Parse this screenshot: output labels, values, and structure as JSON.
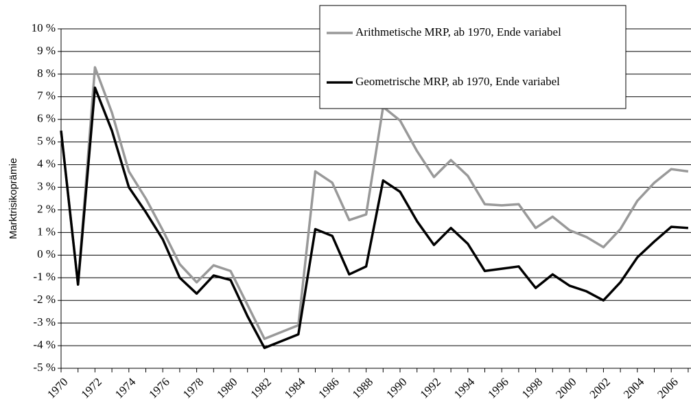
{
  "chart_data": {
    "type": "line",
    "y_label": "Marktrisikoprämie",
    "categories": [
      "1970",
      null,
      "1972",
      null,
      "1974",
      null,
      "1976",
      null,
      "1978",
      null,
      "1980",
      null,
      "1982",
      null,
      "1984",
      null,
      "1986",
      null,
      "1988",
      null,
      "1990",
      null,
      "1992",
      null,
      "1994",
      null,
      "1996",
      null,
      "1998",
      null,
      "2000",
      null,
      "2002",
      null,
      "2004",
      null,
      "2006",
      null
    ],
    "series": [
      {
        "name": "Arithmetische MRP, ab 1970, Ende variabel",
        "color": "#999999",
        "values": [
          5.5,
          -1.3,
          8.3,
          6.3,
          3.7,
          2.5,
          1.1,
          -0.4,
          -1.2,
          -0.45,
          -0.7,
          -2.2,
          -3.7,
          -3.4,
          -3.1,
          3.7,
          3.2,
          1.55,
          1.8,
          6.55,
          5.95,
          4.6,
          3.45,
          4.2,
          3.5,
          2.25,
          2.2,
          2.25,
          1.2,
          1.7,
          1.1,
          0.8,
          0.35,
          1.15,
          2.4,
          3.2,
          3.8,
          3.7
        ]
      },
      {
        "name": "Geometrische MRP, ab 1970, Ende variabel",
        "color": "#000000",
        "values": [
          5.5,
          -1.3,
          7.4,
          5.5,
          3.0,
          1.9,
          0.7,
          -1.0,
          -1.7,
          -0.9,
          -1.1,
          -2.7,
          -4.1,
          -3.8,
          -3.5,
          1.15,
          0.85,
          -0.85,
          -0.5,
          3.3,
          2.8,
          1.5,
          0.45,
          1.2,
          0.5,
          -0.7,
          -0.6,
          -0.5,
          -1.45,
          -0.85,
          -1.35,
          -1.6,
          -2.0,
          -1.2,
          -0.1,
          0.6,
          1.25,
          1.2
        ]
      }
    ],
    "ylim": [
      -5,
      10
    ],
    "yticks": [
      {
        "value": -5,
        "label": "-5 %"
      },
      {
        "value": -4,
        "label": "-4 %"
      },
      {
        "value": -3,
        "label": "-3 %"
      },
      {
        "value": -2,
        "label": "-2 %"
      },
      {
        "value": -1,
        "label": "-1 %"
      },
      {
        "value": 0,
        "label": "0 %"
      },
      {
        "value": 1,
        "label": "1 %"
      },
      {
        "value": 2,
        "label": "2 %"
      },
      {
        "value": 3,
        "label": "3 %"
      },
      {
        "value": 4,
        "label": "4 %"
      },
      {
        "value": 5,
        "label": "5 %"
      },
      {
        "value": 6,
        "label": "6 %"
      },
      {
        "value": 7,
        "label": "7 %"
      },
      {
        "value": 8,
        "label": "8 %"
      },
      {
        "value": 9,
        "label": "9 %"
      },
      {
        "value": 10,
        "label": "10 %"
      }
    ],
    "grid": true,
    "legend": "upper right"
  }
}
